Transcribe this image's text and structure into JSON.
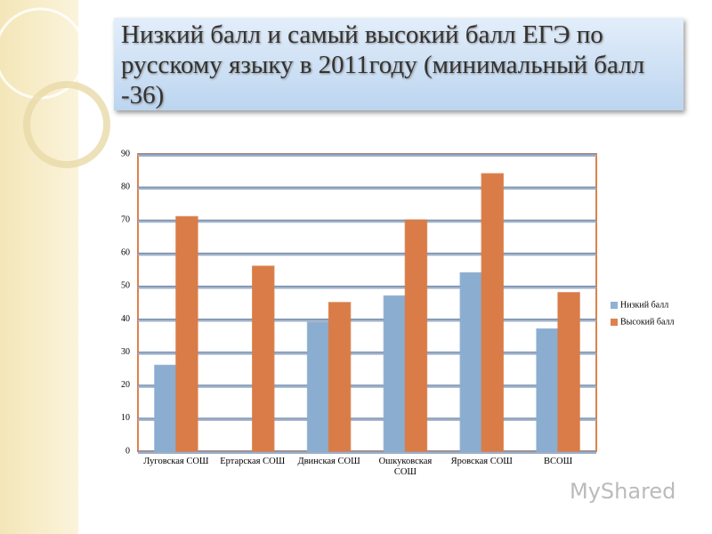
{
  "chart_data": {
    "type": "bar",
    "title": "Низкий балл и самый высокий балл ЕГЭ по русскому языку  в 2011году (минимальный балл -36)",
    "categories": [
      "Луговская СОШ",
      "Ертарская СОШ",
      "Двинская СОШ",
      "Ошкуковская СОШ",
      "Яровская СОШ",
      "ВСОШ"
    ],
    "series": [
      {
        "name": "Низкий балл",
        "color": "#8fb2d6",
        "values": [
          26,
          null,
          39,
          47,
          54,
          37
        ]
      },
      {
        "name": "Высокий балл",
        "color": "#e0804a",
        "values": [
          71,
          56,
          45,
          70,
          84,
          48
        ]
      }
    ],
    "ylim": [
      0,
      90
    ],
    "yticks": [
      0,
      10,
      20,
      30,
      40,
      50,
      60,
      70,
      80,
      90
    ],
    "grid": true,
    "legend": "right",
    "watermark": "MyShared"
  }
}
